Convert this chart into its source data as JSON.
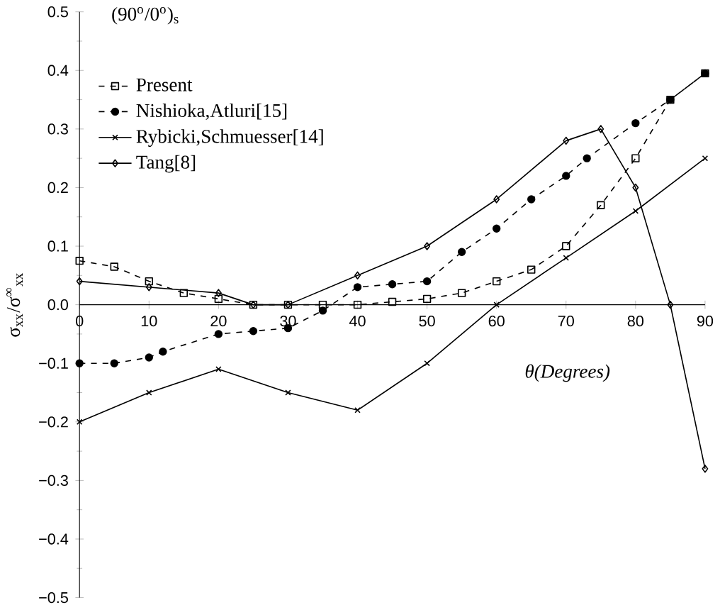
{
  "chart_data": {
    "type": "line",
    "title": "(90$^{o}$/0$^{o}$)$_{s}$",
    "xlabel": "θ(Degrees)",
    "ylabel": "σ$_{xx}$/σ$^{∞}$$_{xx}$",
    "xlim": [
      0,
      90
    ],
    "ylim": [
      -0.5,
      0.5
    ],
    "xticks": [
      0,
      10,
      20,
      30,
      40,
      50,
      60,
      70,
      80,
      90
    ],
    "yticks": [
      {
        "value": -0.5,
        "label": "−0.5"
      },
      {
        "value": -0.4,
        "label": "−0.4"
      },
      {
        "value": -0.3,
        "label": "−0.3"
      },
      {
        "value": -0.2,
        "label": "−0.2"
      },
      {
        "value": -0.1,
        "label": "−0.1"
      },
      {
        "value": 0,
        "label": "0.0"
      },
      {
        "value": 0.1,
        "label": "0.1"
      },
      {
        "value": 0.2,
        "label": "0.2"
      },
      {
        "value": 0.3,
        "label": "0.3"
      },
      {
        "value": 0.4,
        "label": "0.4"
      },
      {
        "value": 0.5,
        "label": "0.5"
      }
    ],
    "legend": "top left",
    "grid": false,
    "series": [
      {
        "name": "Present",
        "color": "#000000",
        "marker": "square",
        "line_style": "dashed",
        "x": [
          0,
          5,
          10,
          15,
          20,
          25,
          30,
          35,
          40,
          45,
          50,
          55,
          60,
          65,
          70,
          75,
          80,
          85,
          90
        ],
        "values": [
          0.075,
          0.065,
          0.04,
          0.02,
          0.01,
          0.0,
          0.0,
          0.0,
          0.0,
          0.005,
          0.01,
          0.02,
          0.04,
          0.06,
          0.1,
          0.17,
          0.25,
          0.35,
          0.395
        ]
      },
      {
        "name": "Nishioka,Atluri[15]",
        "color": "#000000",
        "marker": "circle",
        "line_style": "dashed",
        "x": [
          0,
          5,
          10,
          12,
          20,
          25,
          30,
          35,
          40,
          45,
          50,
          55,
          60,
          65,
          70,
          73,
          80,
          85,
          90
        ],
        "values": [
          -0.1,
          -0.1,
          -0.09,
          -0.08,
          -0.05,
          -0.045,
          -0.04,
          -0.01,
          0.03,
          0.035,
          0.04,
          0.09,
          0.13,
          0.18,
          0.22,
          0.25,
          0.31,
          0.35,
          0.395
        ]
      },
      {
        "name": "Rybicki,Schmuesser[14]",
        "color": "#000000",
        "marker": "cross",
        "line_style": "solid",
        "x": [
          0,
          10,
          20,
          30,
          40,
          50,
          60,
          70,
          80,
          90
        ],
        "values": [
          -0.2,
          -0.15,
          -0.11,
          -0.15,
          -0.18,
          -0.1,
          0.0,
          0.08,
          0.16,
          0.25
        ]
      },
      {
        "name": "Tang[8]",
        "color": "#000000",
        "marker": "diamond",
        "line_style": "solid",
        "x": [
          0,
          10,
          20,
          25,
          30,
          40,
          50,
          60,
          70,
          75,
          80,
          85,
          90
        ],
        "values": [
          0.04,
          0.03,
          0.02,
          0.0,
          0.0,
          0.05,
          0.1,
          0.18,
          0.28,
          0.3,
          0.2,
          0.0,
          -0.28
        ]
      }
    ]
  }
}
